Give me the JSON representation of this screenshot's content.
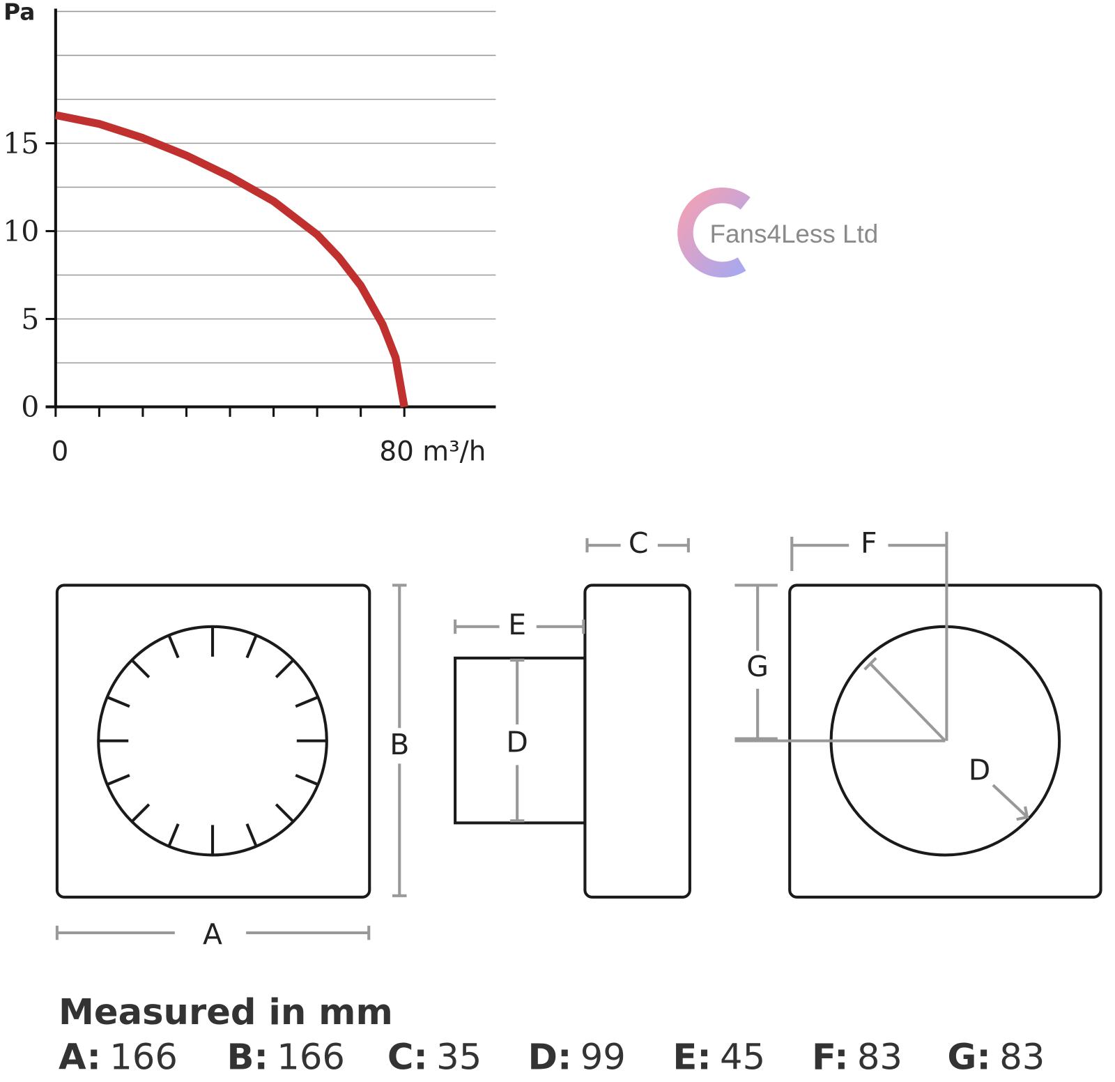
{
  "chart_data": {
    "type": "line",
    "y_label": "Pa",
    "x": [
      0,
      10,
      20,
      30,
      40,
      50,
      60,
      65,
      70,
      75,
      78,
      80
    ],
    "values": [
      16.6,
      16.1,
      15.3,
      14.3,
      13.1,
      11.7,
      9.8,
      8.5,
      6.9,
      4.7,
      2.8,
      0
    ],
    "color": "#c0302e",
    "xlim": [
      0,
      100
    ],
    "xticks": [
      0,
      {
        "value": 80,
        "label": "80 m³/h"
      }
    ],
    "xminor": [
      10,
      20,
      30,
      40,
      50,
      60,
      70
    ],
    "ylim": [
      0,
      22.5
    ],
    "yticks": [
      0,
      5,
      10,
      15
    ],
    "grid_lines": [
      2.5,
      5,
      7.5,
      10,
      12.5,
      15,
      17.5,
      20,
      22.5
    ],
    "grid": true
  },
  "logo": {
    "text": "Fans4Less Ltd"
  },
  "diagram": {
    "labels": [
      "A",
      "B",
      "C",
      "D",
      "E",
      "F",
      "G"
    ]
  },
  "measurements": {
    "title": "Measured in mm",
    "items": [
      {
        "label": "A:",
        "value": 166
      },
      {
        "label": "B:",
        "value": 166
      },
      {
        "label": "C:",
        "value": 35
      },
      {
        "label": "D:",
        "value": 99
      },
      {
        "label": "E:",
        "value": 45
      },
      {
        "label": "F:",
        "value": 83
      },
      {
        "label": "G:",
        "value": 83
      }
    ]
  }
}
